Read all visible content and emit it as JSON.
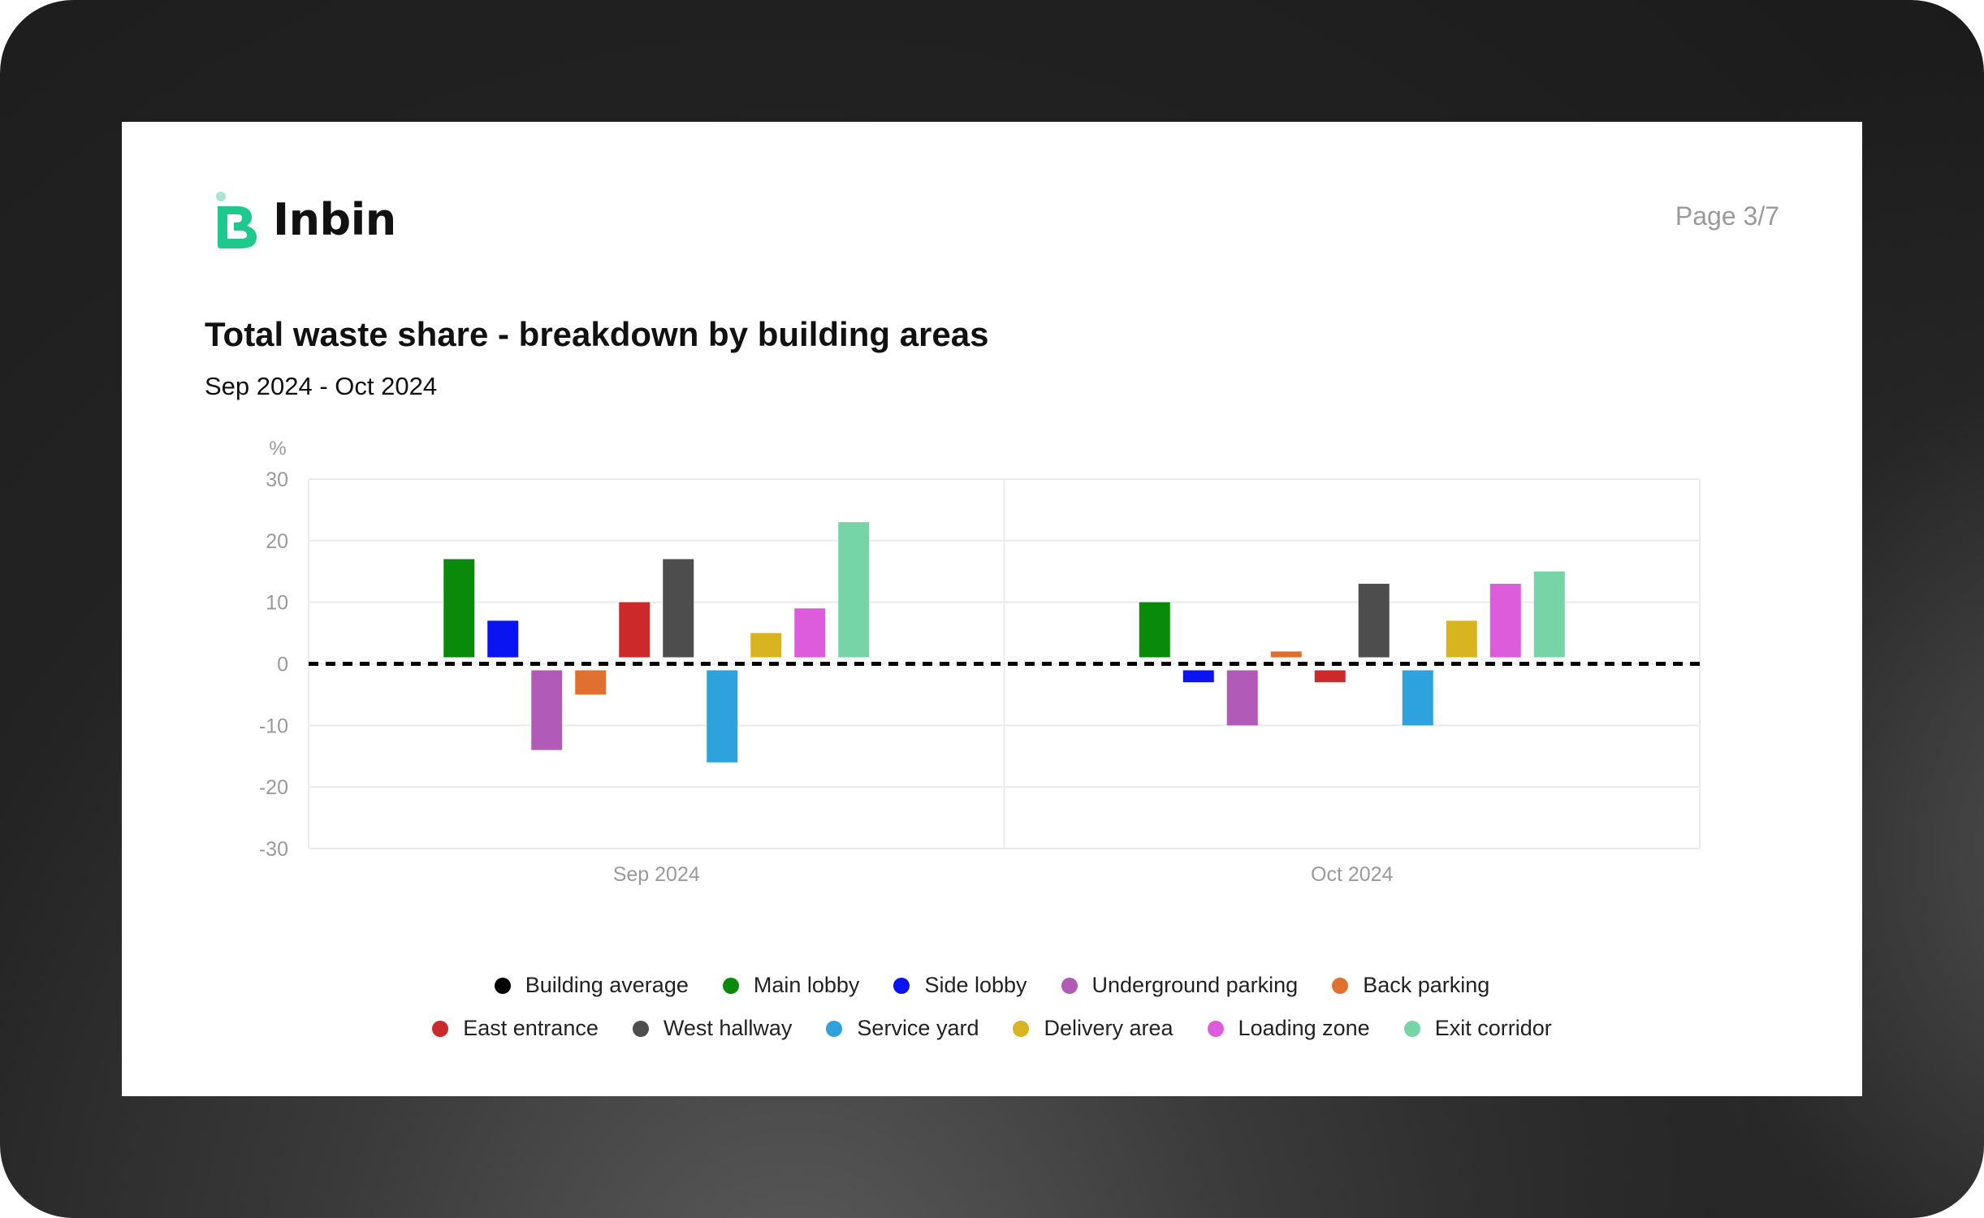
{
  "brand": {
    "name": "Inbin",
    "primary_color": "#1fc98e",
    "accent_color": "#a8e6cf"
  },
  "page_indicator": "Page 3/7",
  "colors": {
    "frame": "#1b1b1b",
    "card": "#ffffff",
    "grid": "#e9e9e9",
    "axis_text": "#9a9a9a"
  },
  "chart_data": {
    "type": "bar",
    "title": "Total waste share - breakdown by building areas",
    "subtitle": "Sep 2024 - Oct 2024",
    "ylabel": "%",
    "xlabel": "",
    "ylim": [
      -30,
      30
    ],
    "yticks": [
      "30",
      "20",
      "10",
      "0",
      "-10",
      "-20",
      "-30"
    ],
    "ytick_values": [
      30,
      20,
      10,
      0,
      -10,
      -20,
      -30
    ],
    "grid": true,
    "legend_position": "bottom-center",
    "categories": [
      "Sep 2024",
      "Oct 2024"
    ],
    "reference_line": {
      "name": "Building average",
      "value": 0,
      "style": "dashed",
      "color": "#000000"
    },
    "series": [
      {
        "name": "Main lobby",
        "color": "#0a8a0a",
        "values": [
          17,
          10
        ]
      },
      {
        "name": "Side lobby",
        "color": "#0a14f0",
        "values": [
          7,
          -3
        ]
      },
      {
        "name": "Underground parking",
        "color": "#b25ab8",
        "values": [
          -14,
          -10
        ]
      },
      {
        "name": "Back parking",
        "color": "#e07030",
        "values": [
          -5,
          2
        ]
      },
      {
        "name": "East entrance",
        "color": "#cc2a2a",
        "values": [
          10,
          -3
        ]
      },
      {
        "name": "West hallway",
        "color": "#4d4d4d",
        "values": [
          17,
          13
        ]
      },
      {
        "name": "Service yard",
        "color": "#2ea2dc",
        "values": [
          -16,
          -10
        ]
      },
      {
        "name": "Delivery area",
        "color": "#d8b420",
        "values": [
          5,
          7
        ]
      },
      {
        "name": "Loading zone",
        "color": "#dc5cdc",
        "values": [
          9,
          13
        ]
      },
      {
        "name": "Exit corridor",
        "color": "#76d4a6",
        "values": [
          23,
          15
        ]
      }
    ]
  },
  "legend": {
    "rows": [
      [
        {
          "label": "Building average",
          "color": "#000000"
        },
        {
          "label": "Main lobby",
          "color": "#0a8a0a"
        },
        {
          "label": "Side lobby",
          "color": "#0a14f0"
        },
        {
          "label": "Underground parking",
          "color": "#b25ab8"
        },
        {
          "label": "Back parking",
          "color": "#e07030"
        }
      ],
      [
        {
          "label": "East entrance",
          "color": "#cc2a2a"
        },
        {
          "label": "West hallway",
          "color": "#4d4d4d"
        },
        {
          "label": "Service yard",
          "color": "#2ea2dc"
        },
        {
          "label": "Delivery area",
          "color": "#d8b420"
        },
        {
          "label": "Loading zone",
          "color": "#dc5cdc"
        },
        {
          "label": "Exit corridor",
          "color": "#76d4a6"
        }
      ]
    ]
  }
}
